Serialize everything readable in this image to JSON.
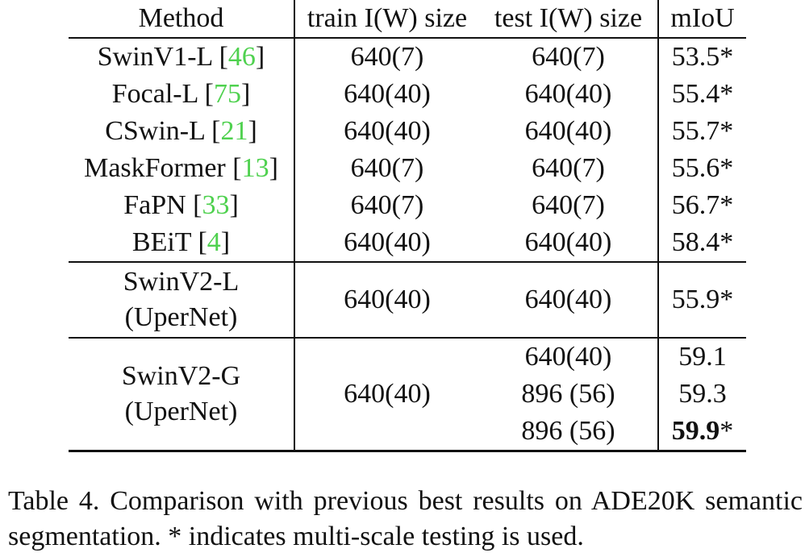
{
  "table": {
    "headers": {
      "method": "Method",
      "train": "train I(W) size",
      "test": "test I(W) size",
      "miou": "mIoU"
    },
    "rows": [
      {
        "method": "SwinV1-L",
        "ref": "46",
        "train": "640(7)",
        "test": "640(7)",
        "miou": "53.5*"
      },
      {
        "method": "Focal-L",
        "ref": "75",
        "train": "640(40)",
        "test": "640(40)",
        "miou": "55.4*"
      },
      {
        "method": "CSwin-L",
        "ref": "21",
        "train": "640(40)",
        "test": "640(40)",
        "miou": "55.7*"
      },
      {
        "method": "MaskFormer",
        "ref": "13",
        "train": "640(7)",
        "test": "640(7)",
        "miou": "55.6*"
      },
      {
        "method": "FaPN",
        "ref": "33",
        "train": "640(7)",
        "test": "640(7)",
        "miou": "56.7*"
      },
      {
        "method": "BEiT",
        "ref": "4",
        "train": "640(40)",
        "test": "640(40)",
        "miou": "58.4*"
      }
    ],
    "swinv2_l": {
      "method_line1": "SwinV2-L",
      "method_line2": "(UperNet)",
      "train": "640(40)",
      "test": "640(40)",
      "miou": "55.9*"
    },
    "swinv2_g": {
      "method_line1": "SwinV2-G",
      "method_line2": "(UperNet)",
      "train": "640(40)",
      "sub_rows": [
        {
          "test": "640(40)",
          "miou": "59.1",
          "miou_bold": "",
          "miou_suffix": ""
        },
        {
          "test": "896 (56)",
          "miou": "59.3",
          "miou_bold": "",
          "miou_suffix": ""
        },
        {
          "test": "896 (56)",
          "miou": "",
          "miou_bold": "59.9",
          "miou_suffix": "*"
        }
      ]
    }
  },
  "caption": "Table 4.  Comparison with previous best results on ADE20K semantic segmentation. * indicates multi-scale testing is used.",
  "colors": {
    "reference_link": "#4fd14f",
    "text": "#111111"
  }
}
